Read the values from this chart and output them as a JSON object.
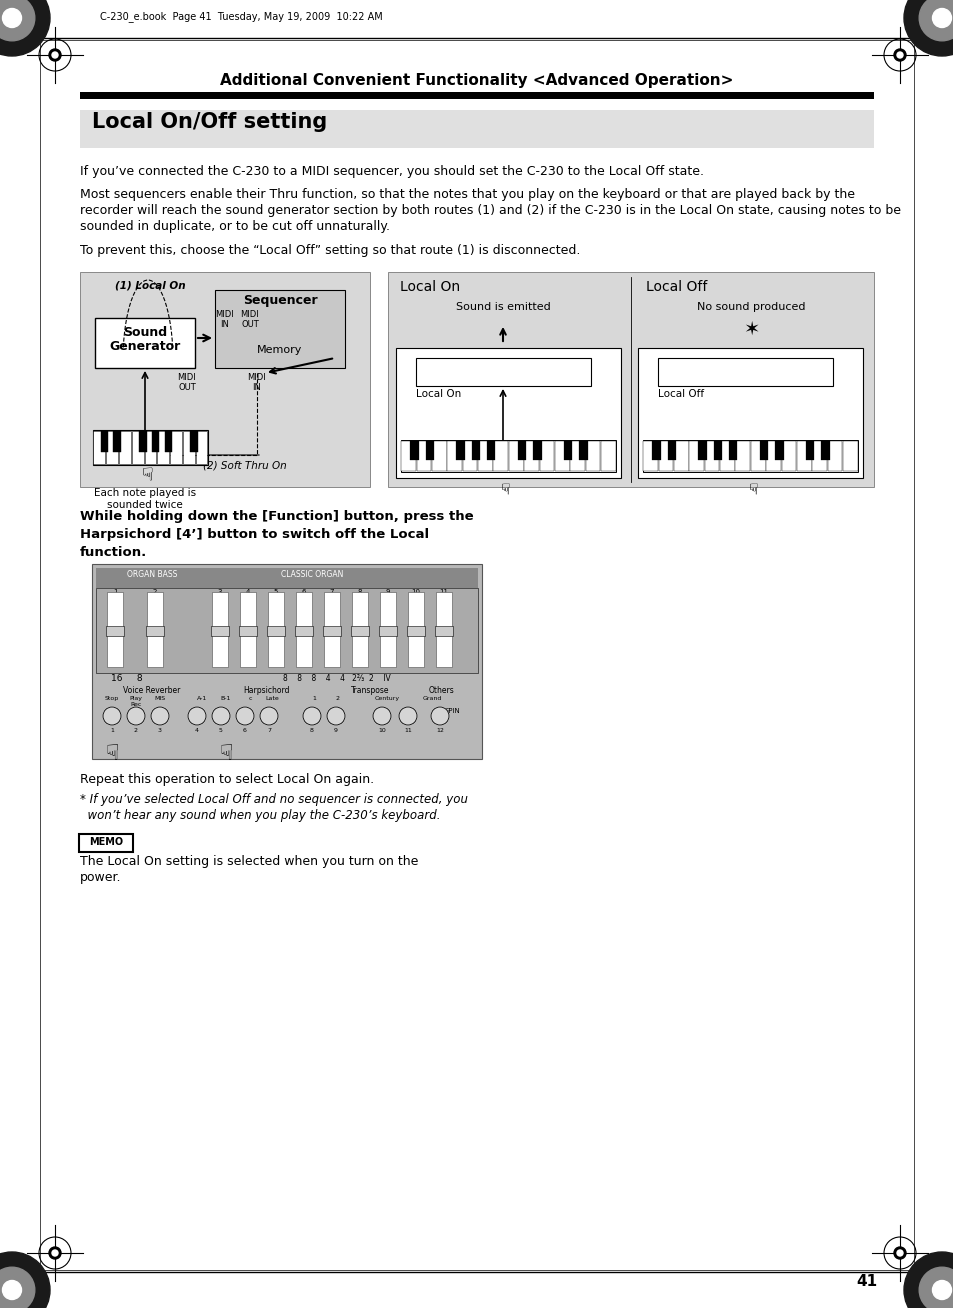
{
  "page_title": "Additional Convenient Functionality <Advanced Operation>",
  "section_title": "Local On/Off setting",
  "body_text_1": "If you’ve connected the C-230 to a MIDI sequencer, you should set the C-230 to the Local Off state.",
  "body_text_2a": "Most sequencers enable their Thru function, so that the notes that you play on the keyboard or that are played back by the",
  "body_text_2b": "recorder will reach the sound generator section by both routes (1) and (2) if the C-230 is in the Local On state, causing notes to be",
  "body_text_2c": "sounded in duplicate, or to be cut off unnaturally.",
  "body_text_3": "To prevent this, choose the “Local Off” setting so that route (1) is disconnected.",
  "instruction_text_1": "While holding down the [Function] button, press the",
  "instruction_text_2": "Harpsichord [4’] button to switch off the Local",
  "instruction_text_3": "function.",
  "repeat_text": "Repeat this operation to select Local On again.",
  "asterisk_line1": "* If you’ve selected Local Off and no sequencer is connected, you",
  "asterisk_line2": "  won’t hear any sound when you play the C-230’s keyboard.",
  "memo_line1": "The Local On setting is selected when you turn on the",
  "memo_line2": "power.",
  "page_number": "41",
  "header_text": "C-230_e.book  Page 41  Tuesday, May 19, 2009  10:22 AM",
  "bg_color": "#ffffff",
  "section_bg": "#e0e0e0",
  "diagram_bg": "#d8d8d8",
  "border_color": "#000000"
}
